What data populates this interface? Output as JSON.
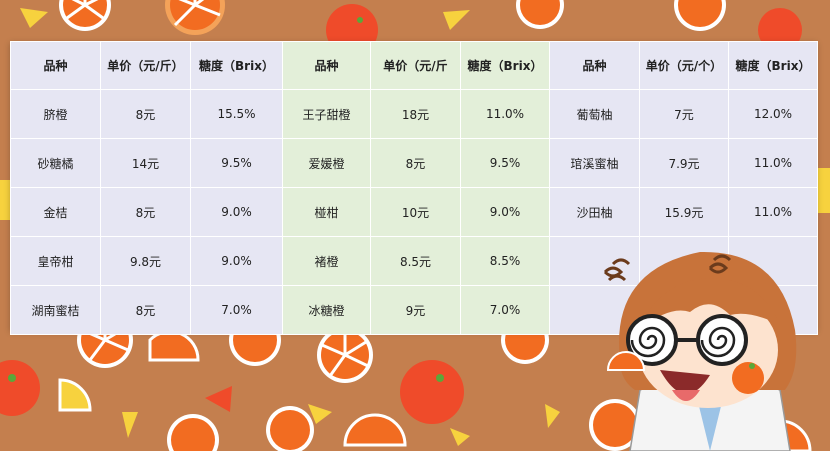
{
  "table": {
    "headers": [
      "品种",
      "单价（元/斤）",
      "糖度（Brix）",
      "品种",
      "单价（元/斤",
      "糖度（Brix）",
      "品种",
      "单价（元/个）",
      "糖度（Brix）"
    ],
    "rows": [
      [
        "脐橙",
        "8元",
        "15.5%",
        "王子甜橙",
        "18元",
        "11.0%",
        "葡萄柚",
        "7元",
        "12.0%"
      ],
      [
        "砂糖橘",
        "14元",
        "9.5%",
        "爱媛橙",
        "8元",
        "9.5%",
        "琯溪蜜柚",
        "7.9元",
        "11.0%"
      ],
      [
        "金桔",
        "8元",
        "9.0%",
        "椪柑",
        "10元",
        "9.0%",
        "沙田柚",
        "15.9元",
        "11.0%"
      ],
      [
        "皇帝柑",
        "9.8元",
        "9.0%",
        "褚橙",
        "8.5元",
        "8.5%",
        "",
        "",
        ""
      ],
      [
        "湖南蜜桔",
        "8元",
        "7.0%",
        "冰糖橙",
        "9元",
        "7.0%",
        "",
        "",
        ""
      ]
    ]
  },
  "colors": {
    "background": "#c47f4e",
    "group1": "#e6e6f3",
    "group2": "#e3efd9",
    "group3": "#e6e6f3"
  }
}
